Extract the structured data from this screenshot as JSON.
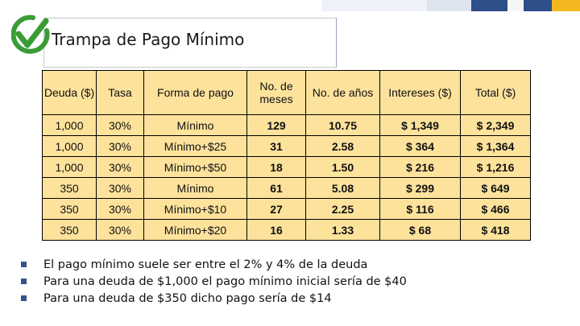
{
  "slide": {
    "title": "Trampa de Pago Mínimo",
    "colors": {
      "accent_green": "#3a9c35",
      "accent_blue": "#2d4f8a",
      "accent_yellow": "#f3b81f",
      "table_fill": "#fde29c"
    },
    "logo_icon": "green-checkmark-in-circle-icon"
  },
  "table": {
    "headers": [
      "Deuda ($)",
      "Tasa",
      "Forma de pago",
      "No. de meses",
      "No. de años",
      "Intereses ($)",
      "Total ($)"
    ],
    "rows": [
      [
        "1,000",
        "30%",
        "Mínimo",
        "129",
        "10.75",
        "$ 1,349",
        "$ 2,349"
      ],
      [
        "1,000",
        "30%",
        "Mínimo+$25",
        "31",
        "2.58",
        "$ 364",
        "$ 1,364"
      ],
      [
        "1,000",
        "30%",
        "Mínimo+$50",
        "18",
        "1.50",
        "$ 216",
        "$ 1,216"
      ],
      [
        "350",
        "30%",
        "Mínimo",
        "61",
        "5.08",
        "$ 299",
        "$ 649"
      ],
      [
        "350",
        "30%",
        "Mínimo+$10",
        "27",
        "2.25",
        "$ 116",
        "$ 466"
      ],
      [
        "350",
        "30%",
        "Mínimo+$20",
        "16",
        "1.33",
        "$ 68",
        "$ 418"
      ]
    ]
  },
  "bullets": [
    "El pago mínimo suele ser entre el 2% y 4% de la deuda",
    "Para una deuda de $1,000 el pago mínimo inicial sería de $40",
    "Para una deuda de $350  dicho pago sería de $14"
  ]
}
